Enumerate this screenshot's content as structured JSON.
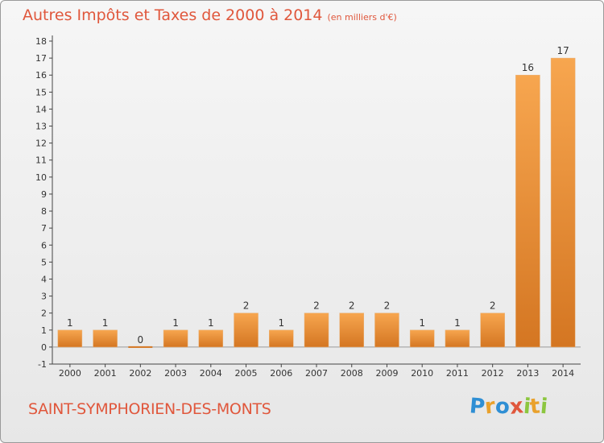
{
  "title": "Autres Impôts et Taxes de 2000 à 2014",
  "unit": "(en milliers d'€)",
  "location": "SAINT-SYMPHORIEN-DES-MONTS",
  "logo": {
    "letters": [
      "P",
      "r",
      "o",
      "x",
      "i",
      "t",
      "i"
    ],
    "colors": [
      "#2f8fd4",
      "#e9a12c",
      "#2f8fd4",
      "#e0573c",
      "#8cc63f",
      "#e9a12c",
      "#8cc63f"
    ]
  },
  "colors": {
    "bar_top": "#f7a64f",
    "bar_bottom": "#d47622",
    "axis": "#444444",
    "text": "#333333"
  },
  "chart_data": {
    "type": "bar",
    "title": "Autres Impôts et Taxes de 2000 à 2014",
    "categories": [
      "2000",
      "2001",
      "2002",
      "2003",
      "2004",
      "2005",
      "2006",
      "2007",
      "2008",
      "2009",
      "2010",
      "2011",
      "2012",
      "2013",
      "2014"
    ],
    "values": [
      1,
      1,
      0,
      1,
      1,
      2,
      1,
      2,
      2,
      2,
      1,
      1,
      2,
      16,
      17
    ],
    "value_labels": [
      "1",
      "1",
      "0",
      "1",
      "1",
      "2",
      "1",
      "2",
      "2",
      "2",
      "1",
      "1",
      "2",
      "16",
      "17"
    ],
    "yticks": [
      -1,
      0,
      1,
      2,
      3,
      4,
      5,
      6,
      7,
      8,
      9,
      10,
      11,
      12,
      13,
      14,
      15,
      16,
      17,
      18
    ],
    "ylim": [
      -1,
      18
    ],
    "grid": false
  }
}
